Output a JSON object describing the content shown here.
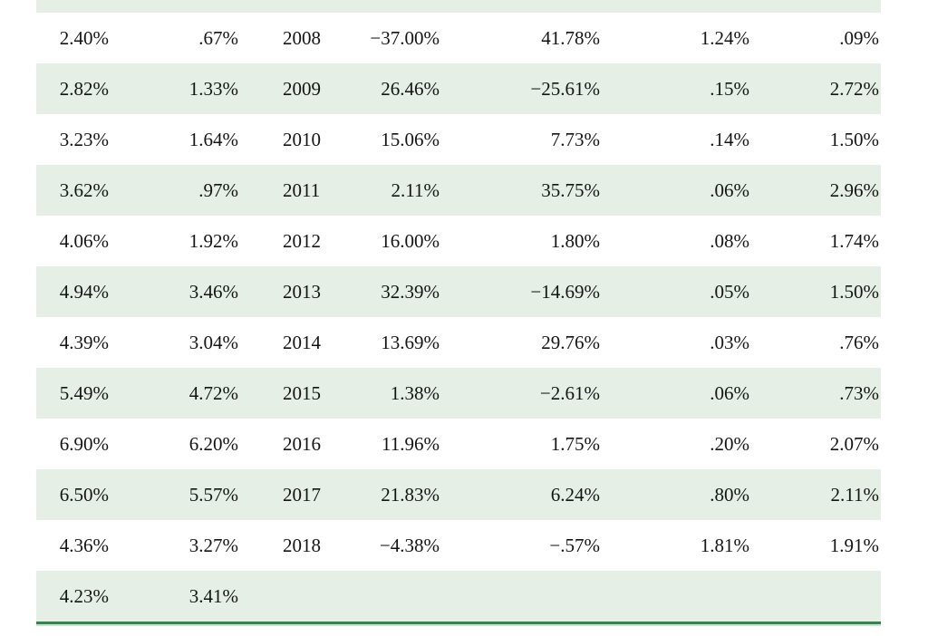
{
  "page": {
    "background": "#ffffff"
  },
  "table": {
    "row_alt_bg": "#e5efe6",
    "bottom_border_color": "#3f7e54",
    "bottom_border_light": "#c9dfcf",
    "text_color": "#141414",
    "rows": [
      [
        "2.40%",
        ".67%",
        "2008",
        "−37.00%",
        "41.78%",
        "1.24%",
        ".09%"
      ],
      [
        "2.82%",
        "1.33%",
        "2009",
        "26.46%",
        "−25.61%",
        ".15%",
        "2.72%"
      ],
      [
        "3.23%",
        "1.64%",
        "2010",
        "15.06%",
        "7.73%",
        ".14%",
        "1.50%"
      ],
      [
        "3.62%",
        ".97%",
        "2011",
        "2.11%",
        "35.75%",
        ".06%",
        "2.96%"
      ],
      [
        "4.06%",
        "1.92%",
        "2012",
        "16.00%",
        "1.80%",
        ".08%",
        "1.74%"
      ],
      [
        "4.94%",
        "3.46%",
        "2013",
        "32.39%",
        "−14.69%",
        ".05%",
        "1.50%"
      ],
      [
        "4.39%",
        "3.04%",
        "2014",
        "13.69%",
        "29.76%",
        ".03%",
        ".76%"
      ],
      [
        "5.49%",
        "4.72%",
        "2015",
        "1.38%",
        "−2.61%",
        ".06%",
        ".73%"
      ],
      [
        "6.90%",
        "6.20%",
        "2016",
        "11.96%",
        "1.75%",
        ".20%",
        "2.07%"
      ],
      [
        "6.50%",
        "5.57%",
        "2017",
        "21.83%",
        "6.24%",
        ".80%",
        "2.11%"
      ],
      [
        "4.36%",
        "3.27%",
        "2018",
        "−4.38%",
        "−.57%",
        "1.81%",
        "1.91%"
      ],
      [
        "4.23%",
        "3.41%",
        "",
        "",
        "",
        "",
        ""
      ]
    ]
  }
}
